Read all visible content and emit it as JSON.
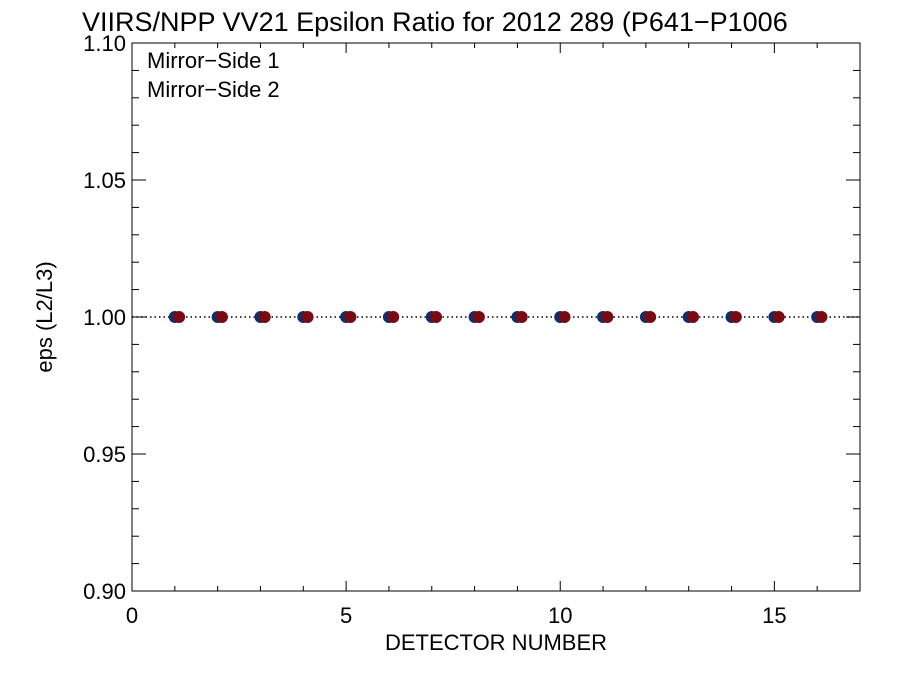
{
  "chart_data": {
    "type": "scatter",
    "title": "VIIRS/NPP VV21 Epsilon Ratio for 2012 289 (P641−P1006",
    "xlabel": "DETECTOR NUMBER",
    "ylabel": "eps (L2/L3)",
    "xlim": [
      0,
      17
    ],
    "ylim": [
      0.9,
      1.1
    ],
    "xticks": [
      0,
      5,
      10,
      15
    ],
    "xtick_labels": [
      "0",
      "5",
      "10",
      "15"
    ],
    "yticks": [
      0.9,
      0.95,
      1.0,
      1.05,
      1.1
    ],
    "ytick_labels": [
      "0.90",
      "0.95",
      "1.00",
      "1.05",
      "1.10"
    ],
    "reference_line": {
      "y": 1.0,
      "style": "dotted"
    },
    "legend_position": "top-left",
    "grid": false,
    "series": [
      {
        "name": "Mirror−Side 1",
        "color": "#0d2f6b",
        "x": [
          1,
          2,
          3,
          4,
          5,
          6,
          7,
          8,
          9,
          10,
          11,
          12,
          13,
          14,
          15,
          16
        ],
        "y": [
          1.0,
          1.0,
          1.0,
          1.0,
          1.0,
          1.0,
          1.0,
          1.0,
          1.0,
          1.0,
          1.0,
          1.0,
          1.0,
          1.0,
          1.0,
          1.0
        ]
      },
      {
        "name": "Mirror−Side 2",
        "color": "#7a0a12",
        "x": [
          1.1,
          2.1,
          3.1,
          4.1,
          5.1,
          6.1,
          7.1,
          8.1,
          9.1,
          10.1,
          11.1,
          12.1,
          13.1,
          14.1,
          15.1,
          16.1
        ],
        "y": [
          1.0,
          1.0,
          1.0,
          1.0,
          1.0,
          1.0,
          1.0,
          1.0,
          1.0,
          1.0,
          1.0,
          1.0,
          1.0,
          1.0,
          1.0,
          1.0
        ]
      }
    ]
  }
}
